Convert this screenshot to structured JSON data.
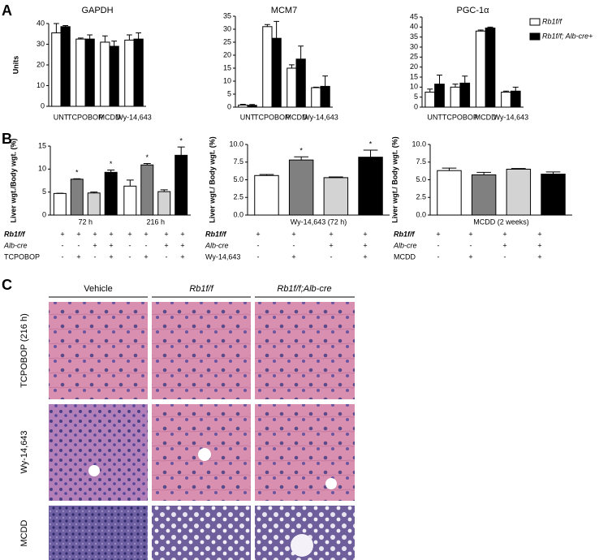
{
  "panel_labels": [
    "A",
    "B",
    "C"
  ],
  "chart_data": [
    {
      "type": "bar",
      "title": "GAPDH",
      "ylabel": "Units",
      "categories": [
        "UNT",
        "TCPOBOP",
        "MCDD",
        "Wy-14,643"
      ],
      "series": [
        {
          "color": "#ffffff",
          "values": [
            35.5,
            32.5,
            31,
            32
          ],
          "errors": [
            4.5,
            0.5,
            3,
            2.5
          ]
        },
        {
          "color": "#000000",
          "values": [
            38.5,
            32.5,
            29,
            32.5
          ],
          "errors": [
            0.5,
            2,
            2.5,
            3
          ]
        }
      ],
      "ylim": [
        0,
        40
      ],
      "yticks": [
        0,
        10,
        20,
        30,
        40
      ]
    },
    {
      "type": "bar",
      "title": "MCM7",
      "categories": [
        "UNT",
        "TCPOBOP",
        "MCDD",
        "Wy-14,643"
      ],
      "series": [
        {
          "color": "#ffffff",
          "values": [
            0.8,
            31,
            15,
            7.5
          ],
          "errors": [
            0.3,
            0.8,
            1.3,
            0.2
          ]
        },
        {
          "color": "#000000",
          "values": [
            0.7,
            26.5,
            18.5,
            8
          ],
          "errors": [
            0.3,
            6.5,
            5,
            4
          ]
        }
      ],
      "ylim": [
        0,
        35
      ],
      "yticks": [
        0,
        5,
        10,
        15,
        20,
        25,
        30,
        35
      ]
    },
    {
      "type": "bar",
      "title": "PGC-1α",
      "categories": [
        "UNT",
        "TCPOBOP",
        "MCDD",
        "Wy-14,643"
      ],
      "series": [
        {
          "name": "Rb1f/f",
          "color": "#ffffff",
          "values": [
            7.5,
            10,
            38,
            7.5
          ],
          "errors": [
            1.5,
            1.5,
            0.5,
            0.5
          ]
        },
        {
          "name": "Rb1f/f; Alb-cre+",
          "color": "#000000",
          "values": [
            11.5,
            12,
            39.5,
            8
          ],
          "errors": [
            4.5,
            3.5,
            0.5,
            2
          ]
        }
      ],
      "ylim": [
        0,
        45
      ],
      "yticks": [
        0,
        5,
        10,
        15,
        20,
        25,
        30,
        35,
        40,
        45
      ],
      "legend": "right"
    },
    {
      "type": "bar",
      "ylabel": "Liver wgt./Body wgt. (%)",
      "categories": [
        "72 h",
        "216 h"
      ],
      "series": [
        {
          "color": "#ffffff",
          "values": [
            4.7,
            6.3
          ],
          "errors": [
            0.05,
            1.3
          ]
        },
        {
          "color": "#808080",
          "values": [
            7.8,
            10.9
          ],
          "errors": [
            0.1,
            0.3
          ],
          "annotations": [
            "*",
            "*"
          ]
        },
        {
          "color": "#d3d3d3",
          "values": [
            4.8,
            5.1
          ],
          "errors": [
            0.2,
            0.4
          ]
        },
        {
          "color": "#000000",
          "values": [
            9.3,
            13
          ],
          "errors": [
            0.5,
            1.8
          ],
          "annotations": [
            "*",
            "*"
          ]
        }
      ],
      "ylim": [
        0,
        15
      ],
      "yticks": [
        0,
        5,
        10,
        15
      ],
      "genotype_rows": [
        {
          "label": "Rb1f/f",
          "signs": [
            "+",
            "+",
            "+",
            "+",
            "+",
            "+",
            "+",
            "+"
          ]
        },
        {
          "label": "Alb-cre",
          "signs": [
            "-",
            "-",
            "+",
            "+",
            "-",
            "-",
            "+",
            "+"
          ]
        },
        {
          "label": "TCPOBOP",
          "signs": [
            "-",
            "+",
            "-",
            "+",
            "-",
            "+",
            "-",
            "+"
          ]
        }
      ]
    },
    {
      "type": "bar",
      "ylabel": "Liver wgt./ Body wgt. (%)",
      "categories": [
        "Wy-14,643 (72 h)"
      ],
      "series": [
        {
          "color": "#ffffff",
          "values": [
            5.6
          ],
          "errors": [
            0.15
          ]
        },
        {
          "color": "#808080",
          "values": [
            7.8
          ],
          "errors": [
            0.45
          ],
          "annotations": [
            "*"
          ]
        },
        {
          "color": "#d3d3d3",
          "values": [
            5.3
          ],
          "errors": [
            0.1
          ]
        },
        {
          "color": "#000000",
          "values": [
            8.2
          ],
          "errors": [
            1.0
          ],
          "annotations": [
            "*"
          ]
        }
      ],
      "ylim": [
        0,
        10
      ],
      "yticks": [
        {
          "value": 0,
          "label": "0.0"
        },
        {
          "value": 2.5,
          "label": "2.5"
        },
        {
          "value": 5,
          "label": "5.0"
        },
        {
          "value": 7.5,
          "label": "7.5"
        },
        {
          "value": 10,
          "label": "10.0"
        }
      ],
      "genotype_rows": [
        {
          "label": "Rb1f/f",
          "signs": [
            "+",
            "+",
            "+",
            "+"
          ]
        },
        {
          "label": "Alb-cre",
          "signs": [
            "-",
            "-",
            "+",
            "+"
          ]
        },
        {
          "label": "Wy-14,643",
          "signs": [
            "-",
            "+",
            "-",
            "+"
          ]
        }
      ]
    },
    {
      "type": "bar",
      "ylabel": "Liver wgt./ Body wgt. (%)",
      "categories": [
        "MCDD (2 weeks)"
      ],
      "series": [
        {
          "color": "#ffffff",
          "values": [
            6.3
          ],
          "errors": [
            0.35
          ]
        },
        {
          "color": "#808080",
          "values": [
            5.7
          ],
          "errors": [
            0.35
          ]
        },
        {
          "color": "#d3d3d3",
          "values": [
            6.5
          ],
          "errors": [
            0.1
          ]
        },
        {
          "color": "#000000",
          "values": [
            5.8
          ],
          "errors": [
            0.3
          ]
        }
      ],
      "ylim": [
        0,
        10
      ],
      "yticks": [
        {
          "value": 0,
          "label": "0.0"
        },
        {
          "value": 2.5,
          "label": "2.5"
        },
        {
          "value": 5,
          "label": "5.0"
        },
        {
          "value": 7.5,
          "label": "7.5"
        },
        {
          "value": 10,
          "label": "10.0"
        }
      ],
      "genotype_rows": [
        {
          "label": "Rb1f/f",
          "signs": [
            "+",
            "+",
            "+",
            "+"
          ]
        },
        {
          "label": "Alb-cre",
          "signs": [
            "-",
            "-",
            "+",
            "+"
          ]
        },
        {
          "label": "MCDD",
          "signs": [
            "-",
            "+",
            "-",
            "+"
          ]
        }
      ]
    }
  ],
  "histology": {
    "columns": [
      "Vehicle",
      "Rb1f/f",
      "Rb1f/f;Alb-cre"
    ],
    "rows": [
      "TCPOBOP (216 h)",
      "Wy-14,643",
      "MCDD"
    ]
  }
}
